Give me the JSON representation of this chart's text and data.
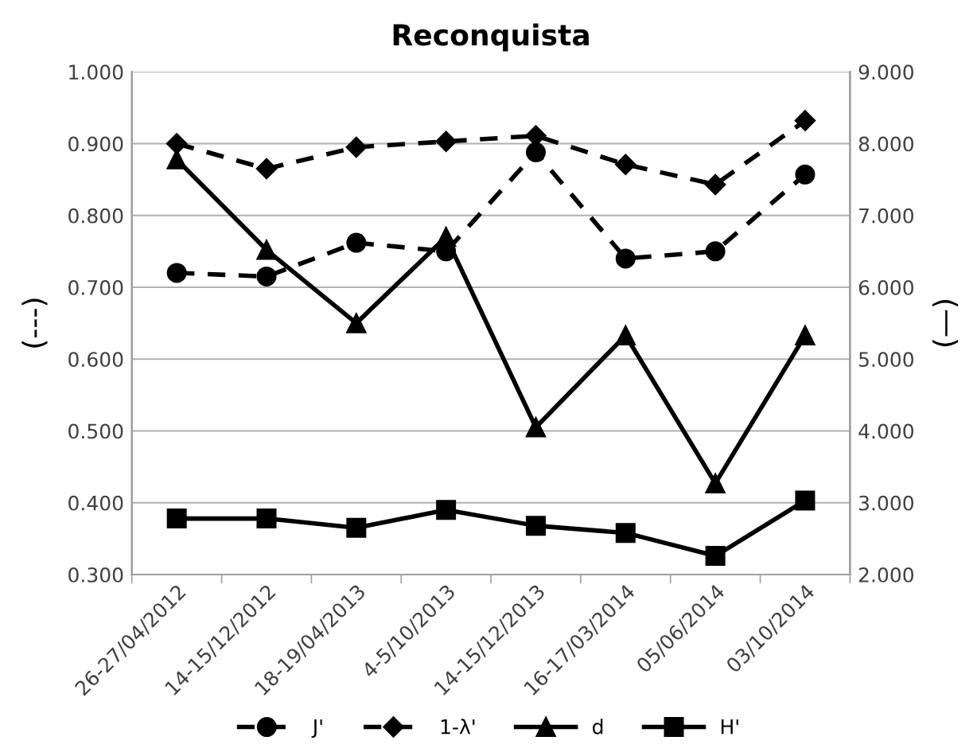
{
  "chart_data": {
    "type": "line",
    "title": "Reconquista",
    "ylabel": "(---)",
    "y2label": "(—)",
    "categories": [
      "26-27/04/2012",
      "14-15/12/2012",
      "18-19/04/2013",
      "4-5/10/2013",
      "14-15/12/2013",
      "16-17/03/2014",
      "05/06/2014",
      "03/10/2014"
    ],
    "series": [
      {
        "name": "J'",
        "color": "#000000",
        "marker": "circle",
        "line_style": "dashed",
        "values": [
          0.72,
          0.715,
          0.762,
          0.75,
          0.888,
          0.74,
          0.75,
          0.857
        ]
      },
      {
        "name": "1-λ'",
        "color": "#000000",
        "marker": "diamond",
        "line_style": "dashed",
        "values": [
          0.9,
          0.865,
          0.895,
          0.903,
          0.911,
          0.871,
          0.843,
          0.932
        ]
      },
      {
        "name": "d",
        "color": "#000000",
        "marker": "triangle",
        "line_style": "solid",
        "axis": "y2",
        "values": [
          7.78,
          6.52,
          5.5,
          6.7,
          4.05,
          5.33,
          3.27,
          5.33
        ]
      },
      {
        "name": "H'",
        "color": "#000000",
        "marker": "square",
        "line_style": "solid",
        "axis": "y2",
        "values": [
          2.78,
          2.78,
          2.65,
          2.9,
          2.68,
          2.58,
          2.26,
          3.03
        ]
      }
    ],
    "ylim": [
      0.3,
      1.0
    ],
    "yticks": [
      {
        "value": 0.3,
        "label": "0.300"
      },
      {
        "value": 0.4,
        "label": "0.400"
      },
      {
        "value": 0.5,
        "label": "0.500"
      },
      {
        "value": 0.6,
        "label": "0.600"
      },
      {
        "value": 0.7,
        "label": "0.700"
      },
      {
        "value": 0.8,
        "label": "0.800"
      },
      {
        "value": 0.9,
        "label": "0.900"
      },
      {
        "value": 1.0,
        "label": "1.000"
      }
    ],
    "y2lim": [
      2,
      9
    ],
    "y2ticks": [
      {
        "value": 2,
        "label": "2.000"
      },
      {
        "value": 3,
        "label": "3.000"
      },
      {
        "value": 4,
        "label": "4.000"
      },
      {
        "value": 5,
        "label": "5.000"
      },
      {
        "value": 6,
        "label": "6.000"
      },
      {
        "value": 7,
        "label": "7.000"
      },
      {
        "value": 8,
        "label": "8.000"
      },
      {
        "value": 9,
        "label": "9.000"
      }
    ],
    "grid": "y",
    "legend": "bottom"
  }
}
